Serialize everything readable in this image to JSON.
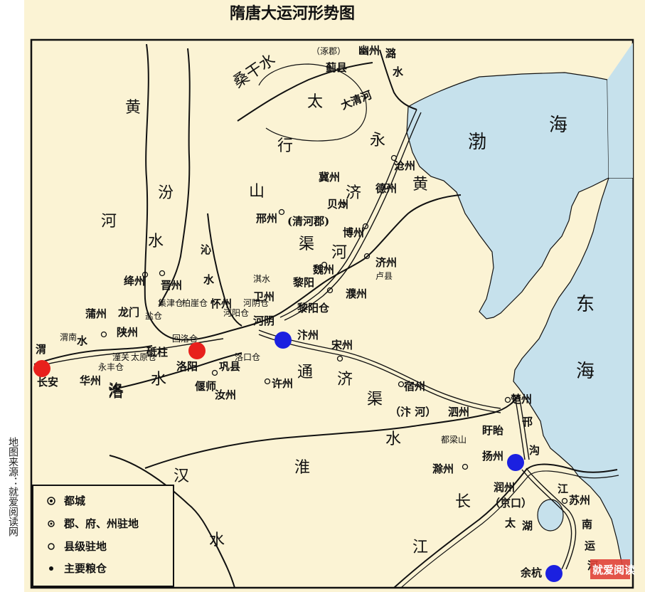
{
  "title": "隋唐大运河形势图",
  "source_note": "地图来源：就爱阅读网",
  "watermark": "就爱阅读",
  "legend": [
    {
      "symbol": "double-circle",
      "label": "都城"
    },
    {
      "symbol": "dot-circle",
      "label": "郡、府、州驻地"
    },
    {
      "symbol": "circle",
      "label": "县级驻地"
    },
    {
      "symbol": "dot",
      "label": "主要粮仓"
    }
  ],
  "colors": {
    "land": "#fbf3d4",
    "sea": "#c6e1ec",
    "river": "#111111",
    "canal": "#111111",
    "frame": "#111111",
    "marker_red": "#e8201c",
    "marker_blue": "#1b20e0",
    "watermark": "#e0433a"
  },
  "regions": {
    "sea_bohai": "渤",
    "sea_bohai2": "海",
    "sea_east1": "东",
    "sea_east2": "海",
    "taihang1": "太",
    "taihang2": "行",
    "taihang3": "山",
    "yellow_river": [
      "黄",
      "河"
    ],
    "fen_river": [
      "汾",
      "水"
    ],
    "qin_river": [
      "沁",
      "水"
    ],
    "sanggan": "桑干水",
    "yongji": [
      "永",
      "济",
      "渠"
    ],
    "tongji": [
      "通",
      "济",
      "渠"
    ],
    "bianhe": "（汴 河）",
    "huai": [
      "淮",
      "水"
    ],
    "han": [
      "汉",
      "水"
    ],
    "yangtze": [
      "长",
      "江"
    ],
    "hanmg": [
      "邗",
      "沟"
    ],
    "jiangnan": [
      "江",
      "南",
      "运",
      "河"
    ],
    "taihu": [
      "太",
      "湖"
    ],
    "luo_river": [
      "洛",
      "水"
    ],
    "wei_river": [
      "渭",
      "水"
    ],
    "lu_river": [
      "潞",
      "水"
    ],
    "qi_water": "淇水",
    "da_qing": "大清河",
    "huang2": "黄",
    "he2": "河"
  },
  "places": {
    "youzhou": "幽州",
    "zhuojun": "（涿郡）",
    "jixian": "蓟县",
    "cangzhou": "沧州",
    "dezhou": "德州",
    "jizhou": "冀州",
    "beizhou": "贝州",
    "xingzhou": "邢州",
    "qinghejun": "(清河郡)",
    "bozhou": "博州",
    "jizhou2": "济州",
    "luxian": "卢县",
    "weizhou": "魏州",
    "liyang": "黎阳",
    "liyangcang": "黎阳仓",
    "puzhou2": "濮州",
    "weizhou2": "卫州",
    "jiangzhou": "绛州",
    "jinzhou": "晋州",
    "puzhou": "蒲州",
    "longmen": "龙门",
    "shanzhou": "陕州",
    "yanjincang": "盐仓",
    "bojincang": "柏崖仓",
    "jijincang": "集津仓",
    "dizhu": "砥柱",
    "huiluo": "回洛仓",
    "huaizhou": "怀州",
    "heyang": "河阳仓",
    "heyin": "河阴仓",
    "heyin2": "河阴",
    "luoyang": "洛阳",
    "gongxian": "巩县",
    "luokou": "洛口仓",
    "yanshi": "偃师",
    "ruzhou": "汝州",
    "xuzhou": "许州",
    "bianzhou": "汴州",
    "songzhou": "宋州",
    "suzhou": "宿州",
    "sizhou": "泗州",
    "duliangshan": "都梁山",
    "xuyi": "盱眙",
    "chuzhou": "楚州",
    "yangzhou": "扬州",
    "chuzhou2": "滁州",
    "runzhou": "润州",
    "jingkou": "（京口）",
    "suzhou2": "苏州",
    "yuhang": "余杭",
    "changan": "长安",
    "weinan": "渭南",
    "huazhou": "华州",
    "yongfeng": "永丰仓",
    "tongguan": "潼关",
    "taiyuan": "太原仓",
    "luo": "洛"
  },
  "markers": [
    {
      "name": "长安",
      "color": "red"
    },
    {
      "name": "洛阳",
      "color": "red"
    },
    {
      "name": "汴州",
      "color": "blue"
    },
    {
      "name": "扬州",
      "color": "blue"
    },
    {
      "name": "余杭",
      "color": "blue"
    }
  ]
}
